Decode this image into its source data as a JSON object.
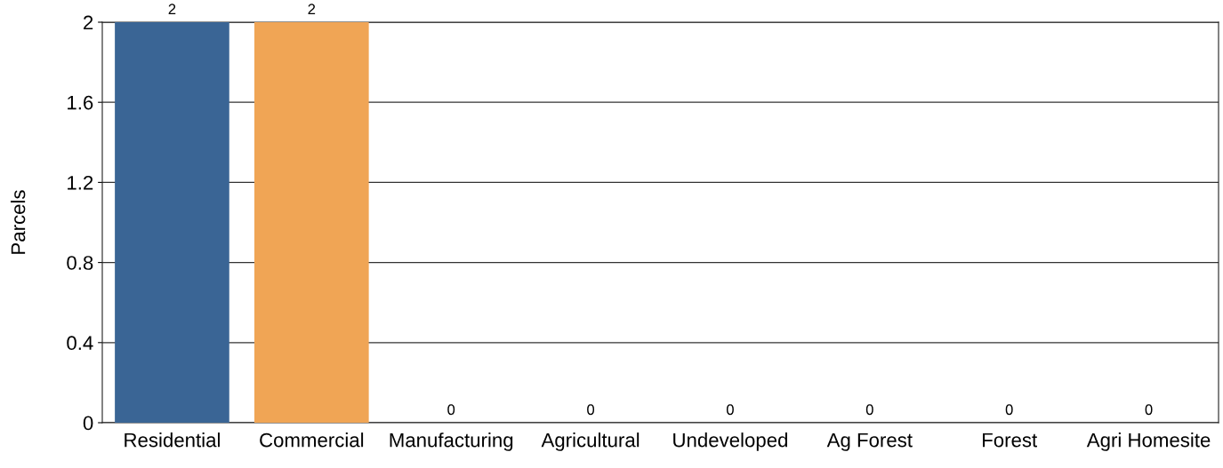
{
  "chart_data": {
    "type": "bar",
    "ylabel": "Parcels",
    "categories": [
      "Residential",
      "Commercial",
      "Manufacturing",
      "Agricultural",
      "Undeveloped",
      "Ag Forest",
      "Forest",
      "Agri Homesite"
    ],
    "values": [
      2,
      2,
      0,
      0,
      0,
      0,
      0,
      0
    ],
    "colors": [
      "#3a6595",
      "#f0a555",
      "#5aa05a",
      "#c84c4c",
      "#8a6fb0",
      "#8c5a4a",
      "#d97fb8",
      "#8c8c8c"
    ],
    "ylim": [
      0,
      2
    ],
    "yticks": [
      0,
      0.4,
      0.8,
      1.2,
      1.6,
      2
    ],
    "grid": "y",
    "data_labels": true
  }
}
